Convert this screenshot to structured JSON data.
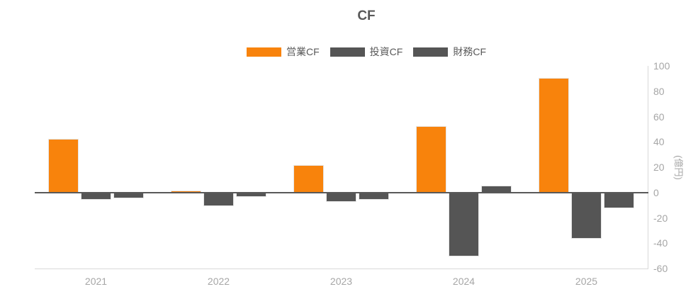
{
  "chart_data": {
    "type": "bar",
    "title": "CF",
    "categories": [
      "2021",
      "2022",
      "2023",
      "2024",
      "2025"
    ],
    "series": [
      {
        "name": "営業CF",
        "color": "#F8830C",
        "values": [
          42,
          1,
          21,
          52,
          90
        ]
      },
      {
        "name": "投資CF",
        "color": "#555555",
        "values": [
          -5,
          -10,
          -7,
          -50,
          -36
        ]
      },
      {
        "name": "財務CF",
        "color": "#555555",
        "values": [
          -4,
          -3,
          -5,
          5,
          -12
        ]
      }
    ],
    "ylabel": "(億円)",
    "ylim": [
      -60,
      100
    ],
    "yticks": [
      100,
      80,
      60,
      40,
      20,
      0,
      -20,
      -40,
      -60
    ],
    "legend_position": "top",
    "grid": false,
    "colors": {
      "title_text": "#595959",
      "legend_text": "#595959",
      "axis_tick_text": "#A6A6A6",
      "zero_line": "#595959",
      "axis_line": "#D9D9D9",
      "background": "#FFFFFF"
    }
  }
}
